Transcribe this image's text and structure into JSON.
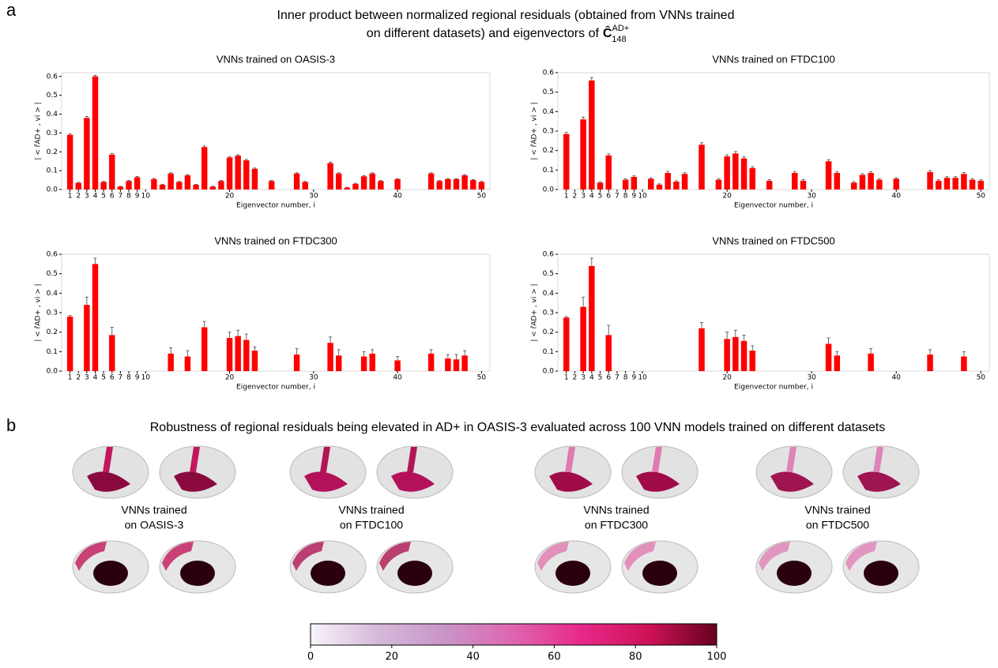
{
  "panel_a": {
    "label": "a",
    "title_lines": [
      "Inner product between normalized regional residuals (obtained from VNNs trained",
      "on different datasets) and eigenvectors of"
    ],
    "title_math": {
      "base": "Ĉ",
      "sup": "AD+",
      "sub": "148"
    }
  },
  "panel_b": {
    "label": "b",
    "title": "Robustness of regional residuals being elevated in AD+ in OASIS-3 evaluated across 100 VNN models trained on different datasets",
    "maps": [
      [
        "VNNs trained",
        "on OASIS-3"
      ],
      [
        "VNNs trained",
        "on FTDC100"
      ],
      [
        "VNNs trained",
        "on FTDC300"
      ],
      [
        "VNNs trained",
        "on FTDC500"
      ]
    ]
  },
  "chart_data": [
    {
      "type": "bar",
      "title": "VNNs trained on OASIS-3",
      "xlabel": "Eigenvector number, i",
      "ylabel": "| < r̂AD+ , vi > |",
      "color": "#ff0000",
      "x": [
        1,
        2,
        3,
        4,
        5,
        6,
        7,
        8,
        9,
        11,
        12,
        13,
        14,
        15,
        16,
        17,
        18,
        19,
        20,
        21,
        22,
        23,
        25,
        28,
        29,
        32,
        33,
        34,
        35,
        36,
        37,
        38,
        40,
        44,
        45,
        46,
        47,
        48,
        49,
        50
      ],
      "values": [
        0.29,
        0.035,
        0.38,
        0.6,
        0.04,
        0.185,
        0.015,
        0.045,
        0.065,
        0.055,
        0.025,
        0.085,
        0.04,
        0.075,
        0.025,
        0.225,
        0.015,
        0.045,
        0.17,
        0.18,
        0.155,
        0.11,
        0.045,
        0.085,
        0.04,
        0.14,
        0.085,
        0.01,
        0.03,
        0.07,
        0.085,
        0.045,
        0.055,
        0.085,
        0.045,
        0.055,
        0.055,
        0.075,
        0.05,
        0.04
      ],
      "errors": [
        0.005,
        0.003,
        0.008,
        0.006,
        0.003,
        0.006,
        0.002,
        0.003,
        0.004,
        0.004,
        0.003,
        0.004,
        0.003,
        0.004,
        0.002,
        0.006,
        0.002,
        0.003,
        0.005,
        0.005,
        0.005,
        0.004,
        0.003,
        0.004,
        0.003,
        0.005,
        0.004,
        0.002,
        0.003,
        0.004,
        0.004,
        0.003,
        0.003,
        0.004,
        0.003,
        0.003,
        0.003,
        0.004,
        0.003,
        0.003
      ],
      "xlim": [
        0,
        51
      ],
      "xticks": [
        1,
        2,
        3,
        4,
        5,
        6,
        7,
        8,
        9,
        10,
        20,
        30,
        40,
        50
      ],
      "ylim": [
        0,
        0.62
      ],
      "yticks": [
        {
          "value": 0,
          "label": "0.0"
        },
        0.1,
        0.2,
        0.3,
        0.4,
        0.5,
        0.6
      ]
    },
    {
      "type": "bar",
      "title": "VNNs trained on FTDC100",
      "xlabel": "Eigenvector number, i",
      "ylabel": "| < r̂AD+ , vi > |",
      "color": "#ff0000",
      "x": [
        1,
        3,
        4,
        5,
        6,
        8,
        9,
        11,
        12,
        13,
        14,
        15,
        17,
        19,
        20,
        21,
        22,
        23,
        25,
        28,
        29,
        32,
        33,
        35,
        36,
        37,
        38,
        40,
        44,
        45,
        46,
        47,
        48,
        49,
        50
      ],
      "values": [
        0.285,
        0.36,
        0.56,
        0.035,
        0.175,
        0.05,
        0.065,
        0.055,
        0.025,
        0.085,
        0.04,
        0.08,
        0.23,
        0.05,
        0.17,
        0.185,
        0.16,
        0.11,
        0.045,
        0.085,
        0.045,
        0.145,
        0.085,
        0.035,
        0.075,
        0.085,
        0.05,
        0.055,
        0.09,
        0.045,
        0.06,
        0.06,
        0.08,
        0.05,
        0.045
      ],
      "errors": [
        0.008,
        0.012,
        0.015,
        0.004,
        0.008,
        0.005,
        0.005,
        0.005,
        0.004,
        0.008,
        0.005,
        0.006,
        0.01,
        0.005,
        0.008,
        0.01,
        0.008,
        0.007,
        0.005,
        0.007,
        0.006,
        0.008,
        0.007,
        0.005,
        0.006,
        0.007,
        0.005,
        0.005,
        0.007,
        0.005,
        0.006,
        0.006,
        0.007,
        0.005,
        0.005
      ],
      "xlim": [
        0,
        51
      ],
      "xticks": [
        1,
        2,
        3,
        4,
        5,
        6,
        7,
        8,
        9,
        10,
        20,
        30,
        40,
        50
      ],
      "ylim": [
        0,
        0.6
      ],
      "yticks": [
        {
          "value": 0,
          "label": "0.0"
        },
        0.1,
        0.2,
        0.3,
        0.4,
        0.5,
        0.6
      ]
    },
    {
      "type": "bar",
      "title": "VNNs trained on FTDC300",
      "xlabel": "Eigenvector number, i",
      "ylabel": "| < r̂AD+ , vi > |",
      "color": "#ff0000",
      "x": [
        1,
        3,
        4,
        6,
        13,
        15,
        17,
        20,
        21,
        22,
        23,
        28,
        32,
        33,
        36,
        37,
        40,
        44,
        46,
        47,
        48
      ],
      "values": [
        0.28,
        0.34,
        0.55,
        0.185,
        0.09,
        0.075,
        0.225,
        0.17,
        0.18,
        0.16,
        0.105,
        0.085,
        0.145,
        0.08,
        0.075,
        0.09,
        0.055,
        0.09,
        0.065,
        0.06,
        0.08
      ],
      "errors": [
        0.005,
        0.04,
        0.03,
        0.04,
        0.03,
        0.03,
        0.03,
        0.03,
        0.03,
        0.03,
        0.02,
        0.03,
        0.03,
        0.03,
        0.025,
        0.02,
        0.02,
        0.02,
        0.02,
        0.025,
        0.025
      ],
      "xlim": [
        0,
        51
      ],
      "xticks": [
        1,
        2,
        3,
        4,
        5,
        6,
        7,
        8,
        9,
        10,
        20,
        30,
        40,
        50
      ],
      "ylim": [
        0,
        0.6
      ],
      "yticks": [
        {
          "value": 0,
          "label": "0.0"
        },
        0.1,
        0.2,
        0.3,
        0.4,
        0.5,
        0.6
      ]
    },
    {
      "type": "bar",
      "title": "VNNs trained on FTDC500",
      "xlabel": "Eigenvector number, i",
      "ylabel": "| < r̂AD+ , vi > |",
      "color": "#ff0000",
      "x": [
        1,
        3,
        4,
        6,
        17,
        20,
        21,
        22,
        23,
        32,
        33,
        37,
        44,
        48
      ],
      "values": [
        0.275,
        0.33,
        0.54,
        0.185,
        0.22,
        0.165,
        0.175,
        0.155,
        0.105,
        0.14,
        0.08,
        0.09,
        0.085,
        0.075
      ],
      "errors": [
        0.005,
        0.05,
        0.04,
        0.05,
        0.03,
        0.035,
        0.035,
        0.03,
        0.025,
        0.03,
        0.02,
        0.025,
        0.025,
        0.025
      ],
      "xlim": [
        0,
        51
      ],
      "xticks": [
        1,
        2,
        3,
        4,
        5,
        6,
        7,
        8,
        9,
        10,
        20,
        30,
        40,
        50
      ],
      "ylim": [
        0,
        0.6
      ],
      "yticks": [
        {
          "value": 0,
          "label": "0.0"
        },
        0.1,
        0.2,
        0.3,
        0.4,
        0.5,
        0.6
      ]
    },
    {
      "type": "colorbar",
      "colors": [
        "#f7f4f9",
        "#d4b9da",
        "#c994c7",
        "#df65b0",
        "#e7298a",
        "#ce1256",
        "#67001f"
      ],
      "xlim": [
        0,
        100
      ],
      "xticks": [
        0,
        20,
        40,
        60,
        80,
        100
      ]
    }
  ]
}
